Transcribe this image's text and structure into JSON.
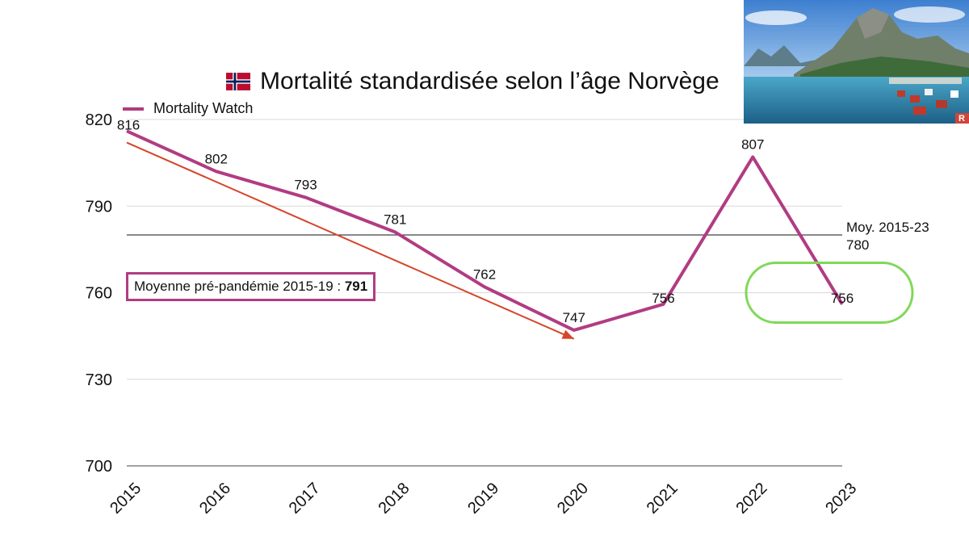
{
  "title": "Mortalité standardisée selon l’âge Norvège",
  "flag_icon": "norway-flag-icon",
  "legend": {
    "label": "Mortality Watch",
    "color": "#b13c82"
  },
  "average_line": {
    "label_line1": "Moy. 2015-23",
    "label_line2": "780",
    "value": 780
  },
  "callout": {
    "text": "Moyenne pré-pandémie 2015-19 : ",
    "value": "791"
  },
  "photo_badge": "R",
  "chart_data": {
    "type": "line",
    "title": "Mortalité standardisée selon l’âge Norvège",
    "categories": [
      "2015",
      "2016",
      "2017",
      "2018",
      "2019",
      "2020",
      "2021",
      "2022",
      "2023"
    ],
    "series": [
      {
        "name": "Mortality Watch",
        "color": "#b13c82",
        "values": [
          816,
          802,
          793,
          781,
          762,
          747,
          756,
          807,
          756
        ]
      }
    ],
    "trend_arrow": {
      "color": "#d6452a",
      "from": {
        "x": "2015",
        "y": 812
      },
      "to": {
        "x": "2020",
        "y": 744
      }
    },
    "highlight": {
      "color": "#7ed957",
      "x": "2023",
      "y": 760
    },
    "yticks": [
      700,
      730,
      760,
      790,
      820
    ],
    "ylim": [
      700,
      820
    ],
    "grid": true
  }
}
